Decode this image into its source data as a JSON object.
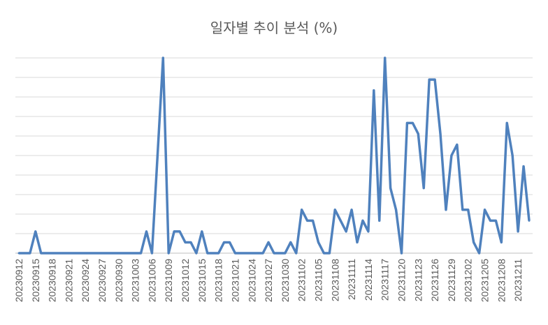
{
  "chart_data": {
    "type": "line",
    "title": "일자별 추이 분석 (%)",
    "xlabel": "",
    "ylabel": "",
    "ylim": [
      0,
      9
    ],
    "grid": true,
    "legend": "none",
    "series_color": "#4F81BD",
    "tick_labels": [
      "20230912",
      "20230915",
      "20230918",
      "20230921",
      "20230924",
      "20230927",
      "20230930",
      "20231003",
      "20231006",
      "20231009",
      "20231012",
      "20231015",
      "20231018",
      "20231021",
      "20231024",
      "20231027",
      "20231030",
      "20231102",
      "20231105",
      "20231108",
      "20231111",
      "20231114",
      "20231117",
      "20231120",
      "20231123",
      "20231126",
      "20231129",
      "20231202",
      "20231205",
      "20231208",
      "20231211"
    ],
    "values": [
      0,
      0,
      0,
      1,
      0,
      0,
      0,
      0,
      0,
      0,
      0,
      0,
      0,
      0,
      0,
      0,
      0,
      0,
      0,
      0,
      0,
      0,
      0,
      1,
      0,
      4.5,
      9,
      0,
      1,
      1,
      0.5,
      0.5,
      0,
      1,
      0,
      0,
      0,
      0.5,
      0.5,
      0,
      0,
      0,
      0,
      0,
      0,
      0.5,
      0,
      0,
      0,
      0.5,
      0,
      2,
      1.5,
      1.5,
      0.5,
      0,
      0,
      2,
      1.5,
      1,
      2,
      0.5,
      1.5,
      1,
      7.5,
      1.5,
      9,
      3,
      2,
      0,
      6,
      6,
      5.5,
      3,
      8,
      8,
      5.5,
      2,
      4.5,
      5,
      2,
      2,
      0.5,
      0,
      2,
      1.5,
      1.5,
      0.5,
      6,
      4.5,
      1,
      4,
      1.5
    ]
  }
}
